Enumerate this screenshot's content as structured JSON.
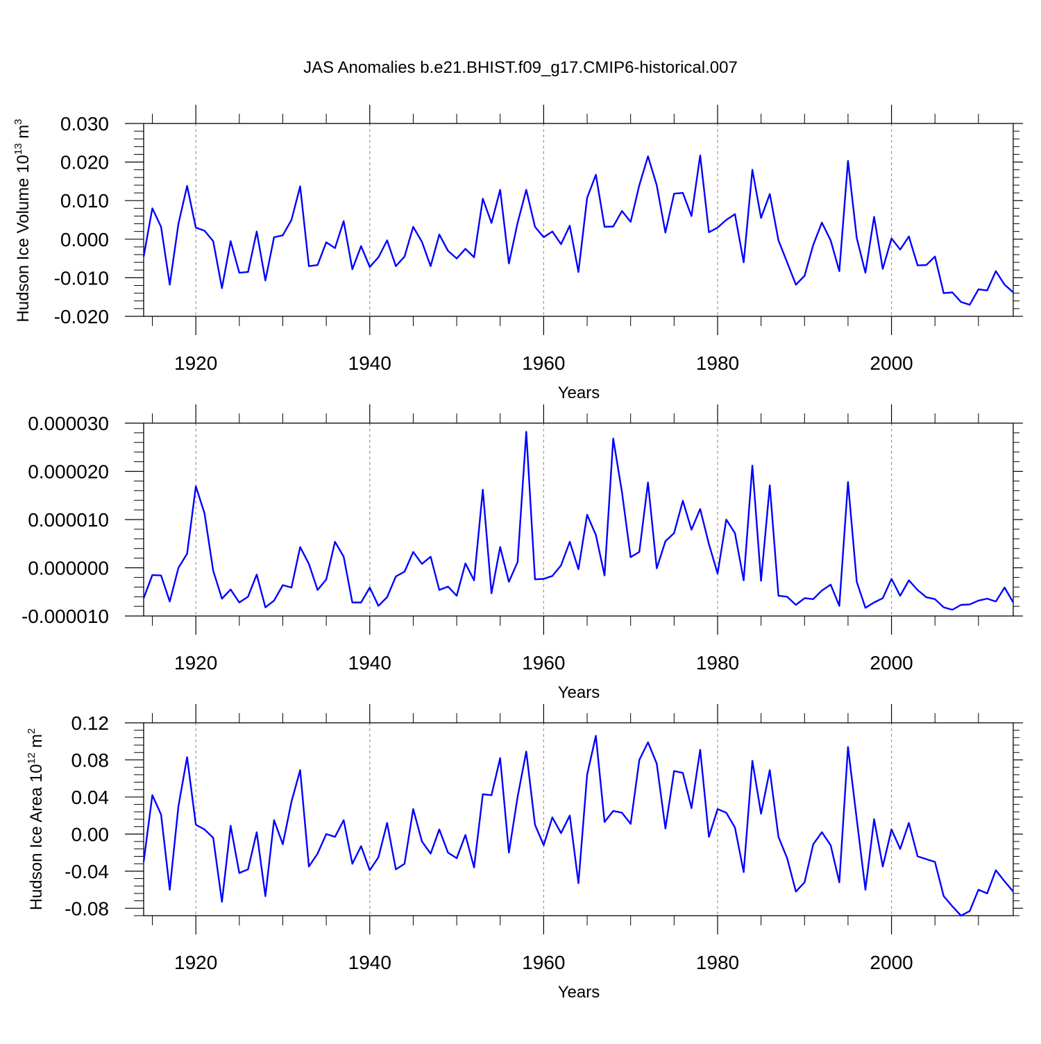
{
  "title": "JAS Anomalies b.e21.BHIST.f09_g17.CMIP6-historical.007",
  "line_color": "#0000ff",
  "chart_data": [
    {
      "type": "line",
      "id": "volume",
      "ylabel": "Hudson Ice Volume",
      "ylabel_unit_base": "10",
      "ylabel_unit_exp": "13",
      "ylabel_unit_tail": "m",
      "ylabel_unit_tail_exp": "3",
      "xlabel": "Years",
      "xlim": [
        1914,
        2014
      ],
      "ylim": [
        -0.02,
        0.03
      ],
      "ytick_values": [
        -0.02,
        -0.01,
        0.0,
        0.01,
        0.02,
        0.03
      ],
      "ytick_labels": [
        "-0.020",
        "-0.010",
        "0.000",
        "0.010",
        "0.020",
        "0.030"
      ],
      "xtick_values": [
        1920,
        1940,
        1960,
        1980,
        2000
      ],
      "xtick_labels": [
        "1920",
        "1940",
        "1960",
        "1980",
        "2000"
      ],
      "grid": "vertical dashed at major x ticks",
      "x_start": 1914,
      "values": [
        -0.0045,
        0.008,
        0.0032,
        -0.0118,
        0.004,
        0.0138,
        0.003,
        0.0022,
        -0.0005,
        -0.0127,
        -0.0005,
        -0.0087,
        -0.0085,
        0.002,
        -0.0107,
        0.0005,
        0.001,
        0.005,
        0.0137,
        -0.007,
        -0.0067,
        -0.0008,
        -0.0023,
        0.0047,
        -0.0078,
        -0.0018,
        -0.0072,
        -0.0047,
        -0.0003,
        -0.007,
        -0.0045,
        0.0032,
        -0.0007,
        -0.007,
        0.0012,
        -0.003,
        -0.005,
        -0.0025,
        -0.0047,
        0.0105,
        0.0042,
        0.0128,
        -0.0063,
        0.0042,
        0.0128,
        0.0032,
        0.0005,
        0.002,
        -0.0013,
        0.0035,
        -0.0085,
        0.0107,
        0.0167,
        0.0032,
        0.0033,
        0.0073,
        0.0045,
        0.014,
        0.0215,
        0.014,
        0.0017,
        0.0118,
        0.012,
        0.006,
        0.0217,
        0.0018,
        0.003,
        0.005,
        0.0065,
        -0.006,
        0.018,
        0.0055,
        0.0117,
        -0.0003,
        -0.006,
        -0.0118,
        -0.0095,
        -0.0015,
        0.0043,
        -0.0003,
        -0.0083,
        0.0203,
        0.0003,
        -0.0087,
        0.0058,
        -0.0077,
        0.0002,
        -0.0027,
        0.0007,
        -0.0068,
        -0.0067,
        -0.0045,
        -0.014,
        -0.0138,
        -0.0163,
        -0.017,
        -0.013,
        -0.0133,
        -0.0083,
        -0.0118,
        -0.0138
      ]
    },
    {
      "type": "line",
      "id": "middle",
      "ylabel": "",
      "xlabel": "Years",
      "xlim": [
        1914,
        2014
      ],
      "ylim": [
        -1e-05,
        3e-05
      ],
      "ytick_values": [
        -1e-05,
        0.0,
        1e-05,
        2e-05,
        3e-05
      ],
      "ytick_labels": [
        "-0.000010",
        "0.000000",
        "0.000010",
        "0.000020",
        "0.000030"
      ],
      "xtick_values": [
        1920,
        1940,
        1960,
        1980,
        2000
      ],
      "xtick_labels": [
        "1920",
        "1940",
        "1960",
        "1980",
        "2000"
      ],
      "grid": "vertical dashed at major x ticks",
      "x_start": 1914,
      "values": [
        -6.3e-06,
        -1.5e-06,
        -1.6e-06,
        -7e-06,
        0.0,
        2.9e-06,
        1.69e-05,
        1.13e-05,
        -6e-07,
        -6.4e-06,
        -4.5e-06,
        -7.2e-06,
        -6e-06,
        -1.4e-06,
        -8.2e-06,
        -6.8e-06,
        -3.6e-06,
        -4.1e-06,
        4.3e-06,
        8e-07,
        -4.6e-06,
        -2.4e-06,
        5.4e-06,
        2.3e-06,
        -7.2e-06,
        -7.2e-06,
        -4.1e-06,
        -7.9e-06,
        -6.1e-06,
        -1.8e-06,
        -8e-07,
        3.3e-06,
        8e-07,
        2.3e-06,
        -4.6e-06,
        -3.9e-06,
        -5.8e-06,
        9e-07,
        -2.6e-06,
        1.62e-05,
        -5.3e-06,
        4.3e-06,
        -2.9e-06,
        1.2e-06,
        2.82e-05,
        -2.4e-06,
        -2.3e-06,
        -1.7e-06,
        5e-07,
        5.4e-06,
        -3e-07,
        1.1e-05,
        6.8e-06,
        -1.6e-06,
        2.68e-05,
        1.57e-05,
        2.2e-06,
        3.3e-06,
        1.77e-05,
        -1e-07,
        5.5e-06,
        7.2e-06,
        1.39e-05,
        7.9e-06,
        1.22e-05,
        4.9e-06,
        -1.2e-06,
        1e-05,
        7.2e-06,
        -2.6e-06,
        2.12e-05,
        -2.7e-06,
        1.71e-05,
        -5.8e-06,
        -6e-06,
        -7.7e-06,
        -6.3e-06,
        -6.5e-06,
        -4.7e-06,
        -3.5e-06,
        -7.9e-06,
        1.78e-05,
        -2.9e-06,
        -8.3e-06,
        -7.2e-06,
        -6.3e-06,
        -2.3e-06,
        -5.8e-06,
        -2.6e-06,
        -4.6e-06,
        -6.1e-06,
        -6.5e-06,
        -8.2e-06,
        -8.7e-06,
        -7.7e-06,
        -7.6e-06,
        -6.8e-06,
        -6.4e-06,
        -7e-06,
        -4.1e-06,
        -7.2e-06
      ]
    },
    {
      "type": "line",
      "id": "area",
      "ylabel": "Hudson Ice Area",
      "ylabel_unit_base": "10",
      "ylabel_unit_exp": "12",
      "ylabel_unit_tail": "m",
      "ylabel_unit_tail_exp": "2",
      "xlabel": "Years",
      "xlim": [
        1914,
        2014
      ],
      "ylim": [
        -0.088,
        0.12
      ],
      "ytick_values": [
        -0.08,
        -0.04,
        0.0,
        0.04,
        0.08,
        0.12
      ],
      "ytick_labels": [
        "-0.08",
        "-0.04",
        "0.00",
        "0.04",
        "0.08",
        "0.12"
      ],
      "xtick_values": [
        1920,
        1940,
        1960,
        1980,
        2000
      ],
      "xtick_labels": [
        "1920",
        "1940",
        "1960",
        "1980",
        "2000"
      ],
      "grid": "vertical dashed at major x ticks",
      "x_start": 1914,
      "values": [
        -0.03,
        0.042,
        0.021,
        -0.06,
        0.03,
        0.083,
        0.01,
        0.005,
        -0.004,
        -0.073,
        0.009,
        -0.042,
        -0.038,
        0.002,
        -0.067,
        0.015,
        -0.011,
        0.035,
        0.069,
        -0.035,
        -0.021,
        0.0,
        -0.003,
        0.015,
        -0.032,
        -0.013,
        -0.039,
        -0.025,
        0.012,
        -0.038,
        -0.032,
        0.027,
        -0.008,
        -0.021,
        0.005,
        -0.02,
        -0.026,
        -0.001,
        -0.036,
        0.043,
        0.042,
        0.082,
        -0.02,
        0.04,
        0.089,
        0.01,
        -0.012,
        0.018,
        0.001,
        0.02,
        -0.053,
        0.064,
        0.106,
        0.013,
        0.025,
        0.023,
        0.011,
        0.08,
        0.099,
        0.076,
        0.006,
        0.068,
        0.066,
        0.028,
        0.091,
        -0.003,
        0.027,
        0.023,
        0.007,
        -0.041,
        0.079,
        0.022,
        0.069,
        -0.003,
        -0.026,
        -0.062,
        -0.052,
        -0.011,
        0.002,
        -0.012,
        -0.052,
        0.094,
        0.016,
        -0.06,
        0.016,
        -0.035,
        0.005,
        -0.016,
        0.012,
        -0.024,
        -0.027,
        -0.03,
        -0.067,
        -0.078,
        -0.088,
        -0.083,
        -0.06,
        -0.064,
        -0.039,
        -0.051,
        -0.062
      ]
    }
  ]
}
